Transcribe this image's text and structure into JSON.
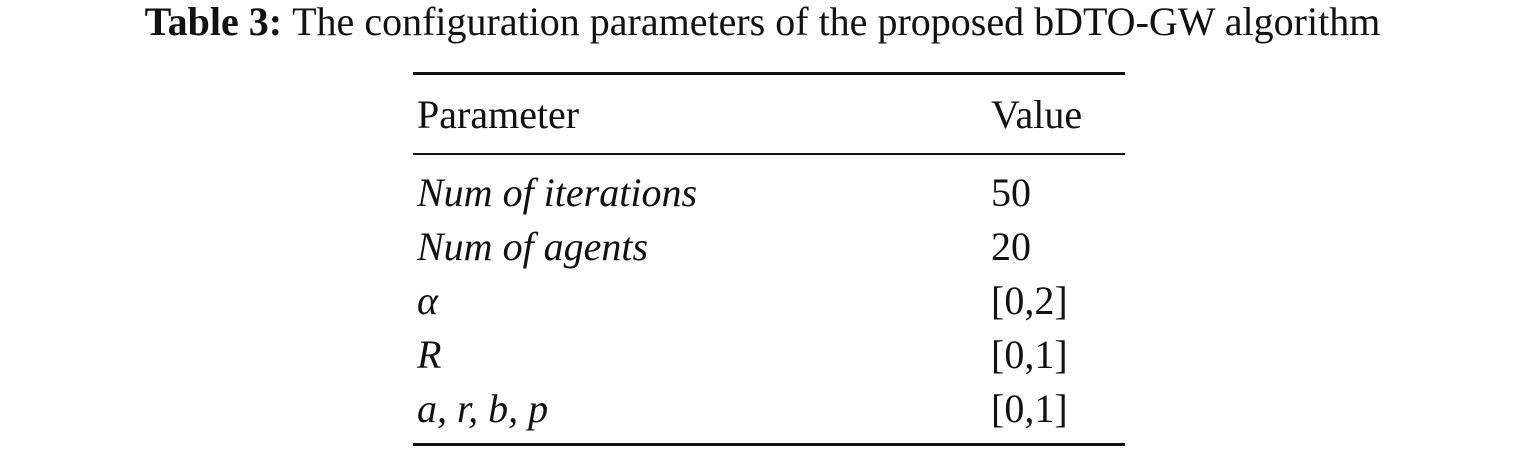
{
  "caption": {
    "label": "Table 3:",
    "text": "The configuration parameters of the proposed bDTO-GW algorithm"
  },
  "table": {
    "headers": [
      "Parameter",
      "Value"
    ],
    "rows": [
      [
        "Num of iterations",
        "50"
      ],
      [
        "Num of agents",
        "20"
      ],
      [
        "α",
        "[0,2]"
      ],
      [
        "R",
        "[0,1]"
      ],
      [
        "a, r, b, p",
        "[0,1]"
      ]
    ]
  }
}
